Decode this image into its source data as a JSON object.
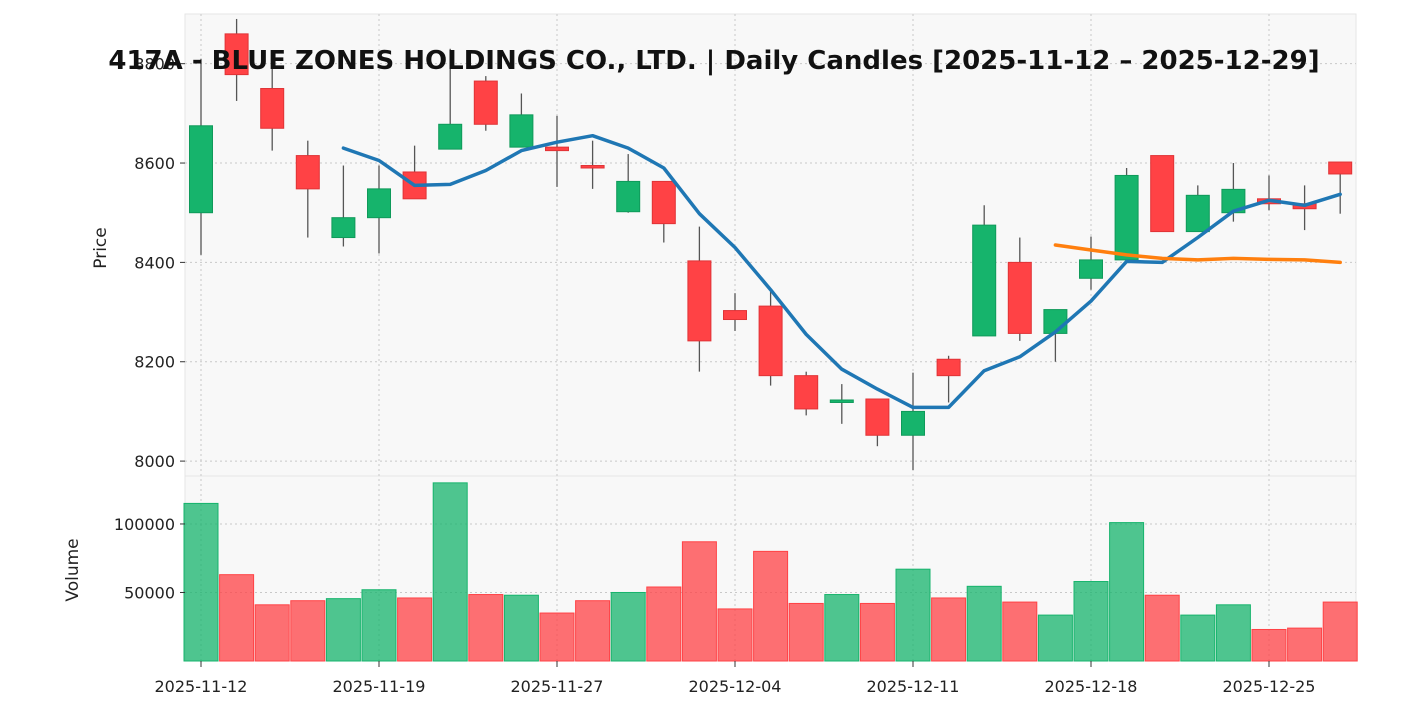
{
  "chart_data": {
    "type": "candlestick",
    "title": "417A - BLUE ZONES HOLDINGS CO., LTD. | Daily Candles [2025-11-12 – 2025-12-29]",
    "price_panel": {
      "ylabel": "Price",
      "ylim": [
        7970,
        8900
      ],
      "yticks": [
        8000,
        8200,
        8400,
        8600,
        8800
      ],
      "ytick_labels": [
        "8000",
        "8200",
        "8400",
        "8600",
        "8800"
      ],
      "grid": true
    },
    "volume_panel": {
      "ylabel": "Volume",
      "ylim": [
        0,
        135000
      ],
      "yticks": [
        50000,
        100000
      ],
      "ytick_labels": [
        "50000",
        "100000"
      ],
      "grid": true
    },
    "x_tick_labels": [
      {
        "index": 0,
        "label": "2025-11-12"
      },
      {
        "index": 5,
        "label": "2025-11-19"
      },
      {
        "index": 10,
        "label": "2025-11-27"
      },
      {
        "index": 15,
        "label": "2025-12-04"
      },
      {
        "index": 20,
        "label": "2025-12-11"
      },
      {
        "index": 25,
        "label": "2025-12-18"
      },
      {
        "index": 30,
        "label": "2025-12-25"
      }
    ],
    "colors": {
      "up": "#16b46c",
      "down": "#ff4245",
      "wick": "#555555",
      "ma_short": "#1f77b4",
      "ma_long": "#ff7f0e"
    },
    "candles": [
      {
        "open": 8500,
        "high": 8810,
        "low": 8415,
        "close": 8675,
        "volume": 115000
      },
      {
        "open": 8860,
        "high": 8890,
        "low": 8725,
        "close": 8778,
        "volume": 63000
      },
      {
        "open": 8750,
        "high": 8815,
        "low": 8625,
        "close": 8670,
        "volume": 41000
      },
      {
        "open": 8615,
        "high": 8645,
        "low": 8450,
        "close": 8548,
        "volume": 44000
      },
      {
        "open": 8450,
        "high": 8595,
        "low": 8432,
        "close": 8490,
        "volume": 45500
      },
      {
        "open": 8490,
        "high": 8595,
        "low": 8418,
        "close": 8548,
        "volume": 52000
      },
      {
        "open": 8582,
        "high": 8635,
        "low": 8528,
        "close": 8528,
        "volume": 46000
      },
      {
        "open": 8628,
        "high": 8830,
        "low": 8628,
        "close": 8678,
        "volume": 130000
      },
      {
        "open": 8765,
        "high": 8775,
        "low": 8665,
        "close": 8678,
        "volume": 48500
      },
      {
        "open": 8632,
        "high": 8740,
        "low": 8632,
        "close": 8697,
        "volume": 48000
      },
      {
        "open": 8632,
        "high": 8695,
        "low": 8552,
        "close": 8625,
        "volume": 35000
      },
      {
        "open": 8595,
        "high": 8645,
        "low": 8548,
        "close": 8590,
        "volume": 44000
      },
      {
        "open": 8502,
        "high": 8618,
        "low": 8500,
        "close": 8563,
        "volume": 50000
      },
      {
        "open": 8563,
        "high": 8563,
        "low": 8440,
        "close": 8478,
        "volume": 54000
      },
      {
        "open": 8403,
        "high": 8472,
        "low": 8180,
        "close": 8242,
        "volume": 87000
      },
      {
        "open": 8303,
        "high": 8338,
        "low": 8262,
        "close": 8285,
        "volume": 38000
      },
      {
        "open": 8312,
        "high": 8345,
        "low": 8152,
        "close": 8172,
        "volume": 80000
      },
      {
        "open": 8172,
        "high": 8180,
        "low": 8092,
        "close": 8105,
        "volume": 42000
      },
      {
        "open": 8118,
        "high": 8155,
        "low": 8075,
        "close": 8123,
        "volume": 48500
      },
      {
        "open": 8125,
        "high": 8125,
        "low": 8030,
        "close": 8052,
        "volume": 42000
      },
      {
        "open": 8052,
        "high": 8178,
        "low": 7982,
        "close": 8100,
        "volume": 67000
      },
      {
        "open": 8205,
        "high": 8212,
        "low": 8118,
        "close": 8172,
        "volume": 46000
      },
      {
        "open": 8252,
        "high": 8515,
        "low": 8252,
        "close": 8475,
        "volume": 54500
      },
      {
        "open": 8400,
        "high": 8450,
        "low": 8242,
        "close": 8257,
        "volume": 43000
      },
      {
        "open": 8257,
        "high": 8305,
        "low": 8200,
        "close": 8305,
        "volume": 33500
      },
      {
        "open": 8368,
        "high": 8452,
        "low": 8345,
        "close": 8405,
        "volume": 58000
      },
      {
        "open": 8405,
        "high": 8590,
        "low": 8405,
        "close": 8575,
        "volume": 101000
      },
      {
        "open": 8615,
        "high": 8615,
        "low": 8462,
        "close": 8462,
        "volume": 48000
      },
      {
        "open": 8462,
        "high": 8555,
        "low": 8462,
        "close": 8535,
        "volume": 33500
      },
      {
        "open": 8500,
        "high": 8600,
        "low": 8482,
        "close": 8547,
        "volume": 41000
      },
      {
        "open": 8528,
        "high": 8575,
        "low": 8505,
        "close": 8518,
        "volume": 23000
      },
      {
        "open": 8518,
        "high": 8555,
        "low": 8465,
        "close": 8508,
        "volume": 24000
      },
      {
        "open": 8602,
        "high": 8602,
        "low": 8498,
        "close": 8578,
        "volume": 43000
      }
    ],
    "ma_short": [
      {
        "index": 4,
        "value": 8630
      },
      {
        "index": 5,
        "value": 8605
      },
      {
        "index": 6,
        "value": 8555
      },
      {
        "index": 7,
        "value": 8557
      },
      {
        "index": 8,
        "value": 8585
      },
      {
        "index": 9,
        "value": 8625
      },
      {
        "index": 10,
        "value": 8642
      },
      {
        "index": 11,
        "value": 8655
      },
      {
        "index": 12,
        "value": 8630
      },
      {
        "index": 13,
        "value": 8590
      },
      {
        "index": 14,
        "value": 8498
      },
      {
        "index": 15,
        "value": 8430
      },
      {
        "index": 16,
        "value": 8345
      },
      {
        "index": 17,
        "value": 8255
      },
      {
        "index": 18,
        "value": 8185
      },
      {
        "index": 19,
        "value": 8145
      },
      {
        "index": 20,
        "value": 8108
      },
      {
        "index": 21,
        "value": 8108
      },
      {
        "index": 22,
        "value": 8182
      },
      {
        "index": 23,
        "value": 8210
      },
      {
        "index": 24,
        "value": 8260
      },
      {
        "index": 25,
        "value": 8322
      },
      {
        "index": 26,
        "value": 8402
      },
      {
        "index": 27,
        "value": 8400
      },
      {
        "index": 28,
        "value": 8450
      },
      {
        "index": 29,
        "value": 8503
      },
      {
        "index": 30,
        "value": 8525
      },
      {
        "index": 31,
        "value": 8515
      },
      {
        "index": 32,
        "value": 8537
      }
    ],
    "ma_long": [
      {
        "index": 24,
        "value": 8435
      },
      {
        "index": 25,
        "value": 8425
      },
      {
        "index": 26,
        "value": 8415
      },
      {
        "index": 27,
        "value": 8408
      },
      {
        "index": 28,
        "value": 8405
      },
      {
        "index": 29,
        "value": 8408
      },
      {
        "index": 30,
        "value": 8406
      },
      {
        "index": 31,
        "value": 8405
      },
      {
        "index": 32,
        "value": 8400
      }
    ]
  }
}
